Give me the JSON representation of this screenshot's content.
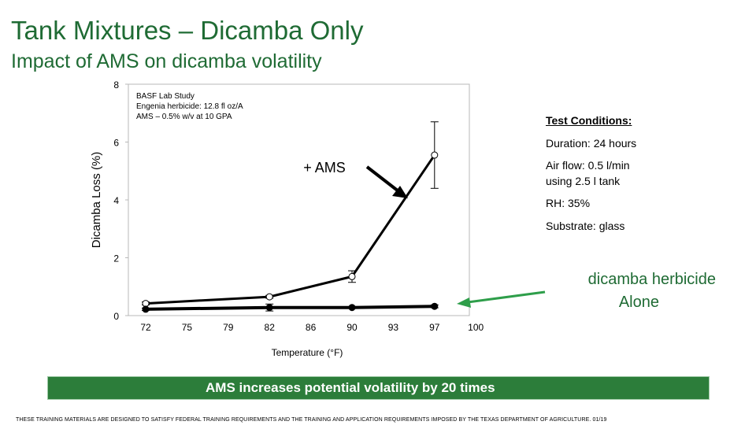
{
  "title": "Tank Mixtures – Dicamba Only",
  "subtitle": "Impact of AMS on dicamba volatility",
  "study_note": [
    "BASF Lab Study",
    "Engenia herbicide: 12.8 fl oz/A",
    "AMS – 0.5% w/v at 10 GPA"
  ],
  "test_conditions": {
    "heading": "Test Conditions:",
    "duration": "Duration: 24 hours",
    "airflow_1": "Air flow: 0.5 l/min",
    "airflow_2": "using  2.5 l tank",
    "rh": "RH: 35%",
    "substrate": "Substrate: glass"
  },
  "callouts": {
    "ams": "+ AMS",
    "alone_1": "dicamba herbicide",
    "alone_2": "Alone"
  },
  "banner": "AMS increases potential volatility by 20 times",
  "footer": "THESE TRAINING MATERIALS ARE DESIGNED TO SATISFY FEDERAL TRAINING REQUIREMENTS AND THE TRAINING AND APPLICATION REQUIREMENTS IMPOSED BY THE TEXAS DEPARTMENT OF AGRICULTURE.   01/19",
  "colors": {
    "title": "#1f6b34",
    "banner": "#2c7d3a",
    "callout_arrow": "#2e9e4a"
  },
  "chart_data": {
    "type": "line",
    "xlabel": "Temperature (°F)",
    "ylabel": "Dicamba Loss (%)",
    "x_tick_labels": [
      "72",
      "75",
      "79",
      "82",
      "86",
      "90",
      "93",
      "97",
      "100"
    ],
    "ylim": [
      0,
      8
    ],
    "yticks": [
      0,
      2,
      4,
      6,
      8
    ],
    "grid": false,
    "legend": "none",
    "series": [
      {
        "name": "+ AMS",
        "x": [
          72,
          82,
          90,
          97
        ],
        "y": [
          0.42,
          0.65,
          1.35,
          5.55
        ],
        "err": [
          0.05,
          0.05,
          0.2,
          1.15
        ],
        "marker": "open-circle"
      },
      {
        "name": "dicamba herbicide Alone",
        "x": [
          72,
          82,
          90,
          97
        ],
        "y": [
          0.22,
          0.28,
          0.28,
          0.32
        ],
        "err": [
          0.04,
          0.12,
          0.03,
          0.05
        ],
        "marker": "filled-circle"
      }
    ]
  }
}
